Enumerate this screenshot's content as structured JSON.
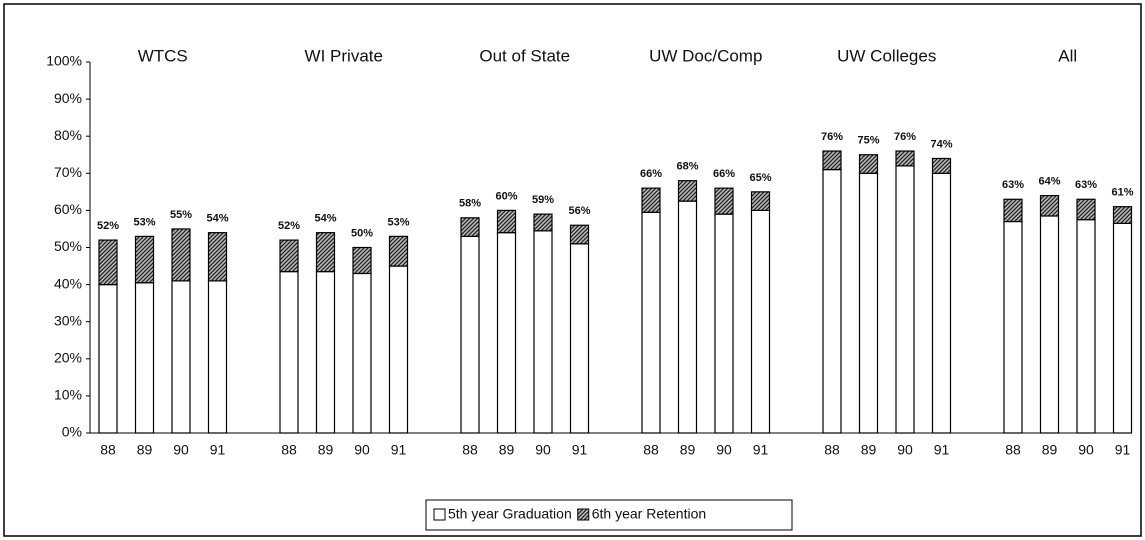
{
  "chart_data": {
    "type": "stacked_bar",
    "groups": [
      "WTCS",
      "WI Private",
      "Out of State",
      "UW Doc/Comp",
      "UW Colleges",
      "All"
    ],
    "categories": [
      "88",
      "89",
      "90",
      "91",
      "88",
      "89",
      "90",
      "91",
      "88",
      "89",
      "90",
      "91",
      "88",
      "89",
      "90",
      "91",
      "88",
      "89",
      "90",
      "91",
      "88",
      "89",
      "90",
      "91"
    ],
    "series": [
      {
        "name": "5th year Graduation",
        "color": "#ffffff",
        "values": [
          40,
          40.5,
          41,
          41,
          43.5,
          43.5,
          43,
          45,
          53,
          54,
          54.5,
          51,
          59.5,
          62.5,
          59,
          60,
          71,
          70,
          72,
          70,
          57,
          58.5,
          57.5,
          56.5
        ]
      },
      {
        "name": "6th year Retention",
        "color": "#444444",
        "values": [
          12,
          12.5,
          14,
          13,
          8.5,
          10.5,
          7,
          8,
          5,
          6,
          4.5,
          5,
          6.5,
          5.5,
          7,
          5,
          5,
          5,
          4,
          4,
          6,
          5.5,
          5.5,
          4.5
        ]
      }
    ],
    "totals": [
      52,
      53,
      55,
      54,
      52,
      54,
      50,
      53,
      58,
      60,
      59,
      56,
      66,
      68,
      66,
      65,
      76,
      75,
      76,
      74,
      63,
      64,
      63,
      61
    ],
    "total_labels": [
      "52%",
      "53%",
      "55%",
      "54%",
      "52%",
      "54%",
      "50%",
      "53%",
      "58%",
      "60%",
      "59%",
      "56%",
      "66%",
      "68%",
      "66%",
      "65%",
      "76%",
      "75%",
      "76%",
      "74%",
      "63%",
      "64%",
      "63%",
      "61%"
    ],
    "ylim": [
      0,
      100
    ],
    "yticks": [
      {
        "value": 0,
        "label": "0%"
      },
      {
        "value": 10,
        "label": "10%"
      },
      {
        "value": 20,
        "label": "20%"
      },
      {
        "value": 30,
        "label": "30%"
      },
      {
        "value": 40,
        "label": "40%"
      },
      {
        "value": 50,
        "label": "50%"
      },
      {
        "value": 60,
        "label": "60%"
      },
      {
        "value": 70,
        "label": "70%"
      },
      {
        "value": 80,
        "label": "80%"
      },
      {
        "value": 90,
        "label": "90%"
      },
      {
        "value": 100,
        "label": "100%"
      }
    ],
    "legend": "bottom"
  }
}
